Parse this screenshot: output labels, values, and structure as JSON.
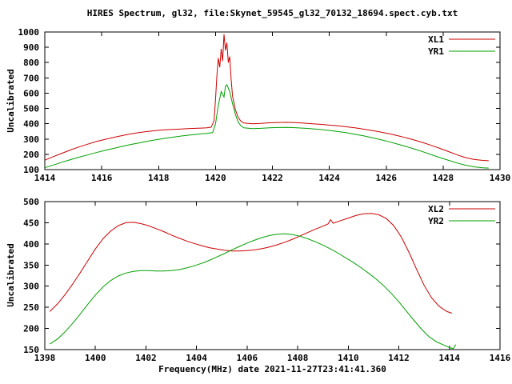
{
  "colors": {
    "background": "#ffffff",
    "foreground": "#000000",
    "series_red": "#cc0000",
    "series_green": "#00a000"
  },
  "chart_data": [
    {
      "type": "line",
      "title": "HIRES Spectrum, gl32, file:Skynet_59545_gl32_70132_18694.spect.cyb.txt",
      "xlabel": "",
      "ylabel": "Uncalibrated",
      "xlim": [
        1414,
        1430
      ],
      "ylim": [
        100,
        1000
      ],
      "xticks": [
        1414,
        1416,
        1418,
        1420,
        1422,
        1424,
        1426,
        1428,
        1430
      ],
      "yticks": [
        100,
        200,
        300,
        400,
        500,
        600,
        700,
        800,
        900,
        1000
      ],
      "grid": false,
      "legend_position": "top-right",
      "series": [
        {
          "name": "XL1",
          "color": "#cc0000",
          "points": [
            [
              1414.0,
              162
            ],
            [
              1414.3,
              185
            ],
            [
              1414.6,
              207
            ],
            [
              1414.9,
              228
            ],
            [
              1415.2,
              248
            ],
            [
              1415.5,
              266
            ],
            [
              1415.8,
              283
            ],
            [
              1416.1,
              297
            ],
            [
              1416.4,
              310
            ],
            [
              1416.7,
              322
            ],
            [
              1417.0,
              333
            ],
            [
              1417.3,
              342
            ],
            [
              1417.6,
              349
            ],
            [
              1417.9,
              355
            ],
            [
              1418.2,
              360
            ],
            [
              1418.5,
              363
            ],
            [
              1418.8,
              366
            ],
            [
              1419.1,
              369
            ],
            [
              1419.4,
              371
            ],
            [
              1419.7,
              373
            ],
            [
              1419.85,
              378
            ],
            [
              1419.95,
              420
            ],
            [
              1420.0,
              560
            ],
            [
              1420.05,
              720
            ],
            [
              1420.1,
              830
            ],
            [
              1420.15,
              770
            ],
            [
              1420.2,
              890
            ],
            [
              1420.25,
              810
            ],
            [
              1420.3,
              985
            ],
            [
              1420.35,
              880
            ],
            [
              1420.4,
              930
            ],
            [
              1420.45,
              800
            ],
            [
              1420.5,
              840
            ],
            [
              1420.55,
              690
            ],
            [
              1420.6,
              580
            ],
            [
              1420.7,
              490
            ],
            [
              1420.8,
              440
            ],
            [
              1420.9,
              415
            ],
            [
              1421.0,
              405
            ],
            [
              1421.3,
              400
            ],
            [
              1421.6,
              402
            ],
            [
              1421.9,
              406
            ],
            [
              1422.2,
              408
            ],
            [
              1422.5,
              409
            ],
            [
              1422.8,
              407
            ],
            [
              1423.1,
              404
            ],
            [
              1423.4,
              400
            ],
            [
              1423.7,
              396
            ],
            [
              1424.0,
              391
            ],
            [
              1424.3,
              386
            ],
            [
              1424.6,
              380
            ],
            [
              1424.9,
              373
            ],
            [
              1425.2,
              365
            ],
            [
              1425.5,
              356
            ],
            [
              1425.8,
              346
            ],
            [
              1426.1,
              335
            ],
            [
              1426.4,
              322
            ],
            [
              1426.7,
              308
            ],
            [
              1427.0,
              293
            ],
            [
              1427.3,
              276
            ],
            [
              1427.6,
              258
            ],
            [
              1427.9,
              238
            ],
            [
              1428.2,
              217
            ],
            [
              1428.5,
              196
            ],
            [
              1428.8,
              178
            ],
            [
              1429.1,
              166
            ],
            [
              1429.4,
              160
            ],
            [
              1429.6,
              158
            ]
          ]
        },
        {
          "name": "YR1",
          "color": "#00a000",
          "points": [
            [
              1414.0,
              112
            ],
            [
              1414.3,
              130
            ],
            [
              1414.6,
              148
            ],
            [
              1414.9,
              165
            ],
            [
              1415.2,
              181
            ],
            [
              1415.5,
              196
            ],
            [
              1415.8,
              211
            ],
            [
              1416.1,
              225
            ],
            [
              1416.4,
              238
            ],
            [
              1416.7,
              251
            ],
            [
              1417.0,
              263
            ],
            [
              1417.3,
              274
            ],
            [
              1417.6,
              285
            ],
            [
              1417.9,
              295
            ],
            [
              1418.2,
              304
            ],
            [
              1418.5,
              312
            ],
            [
              1418.8,
              320
            ],
            [
              1419.1,
              326
            ],
            [
              1419.4,
              332
            ],
            [
              1419.7,
              337
            ],
            [
              1419.9,
              342
            ],
            [
              1420.0,
              400
            ],
            [
              1420.1,
              520
            ],
            [
              1420.2,
              610
            ],
            [
              1420.3,
              575
            ],
            [
              1420.35,
              645
            ],
            [
              1420.4,
              655
            ],
            [
              1420.5,
              610
            ],
            [
              1420.6,
              530
            ],
            [
              1420.7,
              460
            ],
            [
              1420.8,
              410
            ],
            [
              1420.9,
              385
            ],
            [
              1421.0,
              373
            ],
            [
              1421.3,
              368
            ],
            [
              1421.6,
              370
            ],
            [
              1421.9,
              373
            ],
            [
              1422.2,
              375
            ],
            [
              1422.5,
              376
            ],
            [
              1422.8,
              374
            ],
            [
              1423.1,
              371
            ],
            [
              1423.4,
              367
            ],
            [
              1423.7,
              362
            ],
            [
              1424.0,
              356
            ],
            [
              1424.3,
              349
            ],
            [
              1424.6,
              341
            ],
            [
              1424.9,
              331
            ],
            [
              1425.2,
              321
            ],
            [
              1425.5,
              309
            ],
            [
              1425.8,
              296
            ],
            [
              1426.1,
              282
            ],
            [
              1426.4,
              267
            ],
            [
              1426.7,
              251
            ],
            [
              1427.0,
              234
            ],
            [
              1427.3,
              216
            ],
            [
              1427.6,
              197
            ],
            [
              1427.9,
              178
            ],
            [
              1428.2,
              160
            ],
            [
              1428.5,
              143
            ],
            [
              1428.8,
              128
            ],
            [
              1429.1,
              118
            ],
            [
              1429.4,
              112
            ],
            [
              1429.6,
              110
            ]
          ]
        }
      ]
    },
    {
      "type": "line",
      "title": "",
      "xlabel": "Frequency(MHz) date 2021-11-27T23:41:41.360",
      "ylabel": "Uncalibrated",
      "xlim": [
        1398,
        1416
      ],
      "ylim": [
        150,
        500
      ],
      "xticks": [
        1398,
        1400,
        1402,
        1404,
        1406,
        1408,
        1410,
        1412,
        1414,
        1416
      ],
      "yticks": [
        150,
        200,
        250,
        300,
        350,
        400,
        450,
        500
      ],
      "grid": false,
      "legend_position": "top-right",
      "series": [
        {
          "name": "XL2",
          "color": "#cc0000",
          "points": [
            [
              1398.2,
              240
            ],
            [
              1398.5,
              258
            ],
            [
              1398.8,
              280
            ],
            [
              1399.1,
              305
            ],
            [
              1399.4,
              332
            ],
            [
              1399.7,
              360
            ],
            [
              1400.0,
              388
            ],
            [
              1400.3,
              412
            ],
            [
              1400.6,
              430
            ],
            [
              1400.9,
              443
            ],
            [
              1401.2,
              450
            ],
            [
              1401.5,
              451
            ],
            [
              1401.8,
              448
            ],
            [
              1402.1,
              443
            ],
            [
              1402.4,
              436
            ],
            [
              1402.7,
              429
            ],
            [
              1403.0,
              421
            ],
            [
              1403.3,
              414
            ],
            [
              1403.6,
              407
            ],
            [
              1403.9,
              401
            ],
            [
              1404.2,
              396
            ],
            [
              1404.5,
              391
            ],
            [
              1404.8,
              388
            ],
            [
              1405.1,
              385
            ],
            [
              1405.4,
              383
            ],
            [
              1405.7,
              383
            ],
            [
              1406.0,
              384
            ],
            [
              1406.3,
              386
            ],
            [
              1406.6,
              389
            ],
            [
              1406.9,
              393
            ],
            [
              1407.2,
              398
            ],
            [
              1407.5,
              404
            ],
            [
              1407.8,
              411
            ],
            [
              1408.1,
              419
            ],
            [
              1408.4,
              427
            ],
            [
              1408.7,
              435
            ],
            [
              1409.0,
              442
            ],
            [
              1409.2,
              447
            ],
            [
              1409.3,
              457
            ],
            [
              1409.4,
              449
            ],
            [
              1409.7,
              455
            ],
            [
              1410.0,
              461
            ],
            [
              1410.3,
              467
            ],
            [
              1410.6,
              471
            ],
            [
              1410.9,
              472
            ],
            [
              1411.2,
              469
            ],
            [
              1411.5,
              460
            ],
            [
              1411.8,
              443
            ],
            [
              1412.1,
              416
            ],
            [
              1412.4,
              380
            ],
            [
              1412.7,
              340
            ],
            [
              1413.0,
              302
            ],
            [
              1413.3,
              272
            ],
            [
              1413.6,
              252
            ],
            [
              1413.9,
              240
            ],
            [
              1414.1,
              236
            ]
          ]
        },
        {
          "name": "YR2",
          "color": "#00a000",
          "points": [
            [
              1398.2,
              163
            ],
            [
              1398.5,
              175
            ],
            [
              1398.8,
              192
            ],
            [
              1399.1,
              212
            ],
            [
              1399.4,
              234
            ],
            [
              1399.7,
              257
            ],
            [
              1400.0,
              279
            ],
            [
              1400.3,
              298
            ],
            [
              1400.6,
              313
            ],
            [
              1400.9,
              324
            ],
            [
              1401.2,
              331
            ],
            [
              1401.5,
              335
            ],
            [
              1401.8,
              337
            ],
            [
              1402.1,
              337
            ],
            [
              1402.4,
              336
            ],
            [
              1402.7,
              336
            ],
            [
              1403.0,
              337
            ],
            [
              1403.3,
              339
            ],
            [
              1403.6,
              343
            ],
            [
              1403.9,
              348
            ],
            [
              1404.2,
              354
            ],
            [
              1404.5,
              361
            ],
            [
              1404.8,
              369
            ],
            [
              1405.1,
              377
            ],
            [
              1405.4,
              386
            ],
            [
              1405.7,
              394
            ],
            [
              1406.0,
              402
            ],
            [
              1406.3,
              409
            ],
            [
              1406.6,
              415
            ],
            [
              1406.9,
              420
            ],
            [
              1407.2,
              423
            ],
            [
              1407.5,
              424
            ],
            [
              1407.8,
              422
            ],
            [
              1408.1,
              418
            ],
            [
              1408.4,
              412
            ],
            [
              1408.7,
              405
            ],
            [
              1409.0,
              397
            ],
            [
              1409.3,
              388
            ],
            [
              1409.6,
              378
            ],
            [
              1409.9,
              367
            ],
            [
              1410.2,
              356
            ],
            [
              1410.5,
              344
            ],
            [
              1410.8,
              331
            ],
            [
              1411.1,
              317
            ],
            [
              1411.4,
              301
            ],
            [
              1411.7,
              283
            ],
            [
              1412.0,
              263
            ],
            [
              1412.3,
              241
            ],
            [
              1412.6,
              219
            ],
            [
              1412.9,
              198
            ],
            [
              1413.2,
              180
            ],
            [
              1413.5,
              168
            ],
            [
              1413.8,
              160
            ],
            [
              1414.0,
              155
            ],
            [
              1414.15,
              152
            ],
            [
              1414.25,
              162
            ]
          ]
        }
      ]
    }
  ]
}
